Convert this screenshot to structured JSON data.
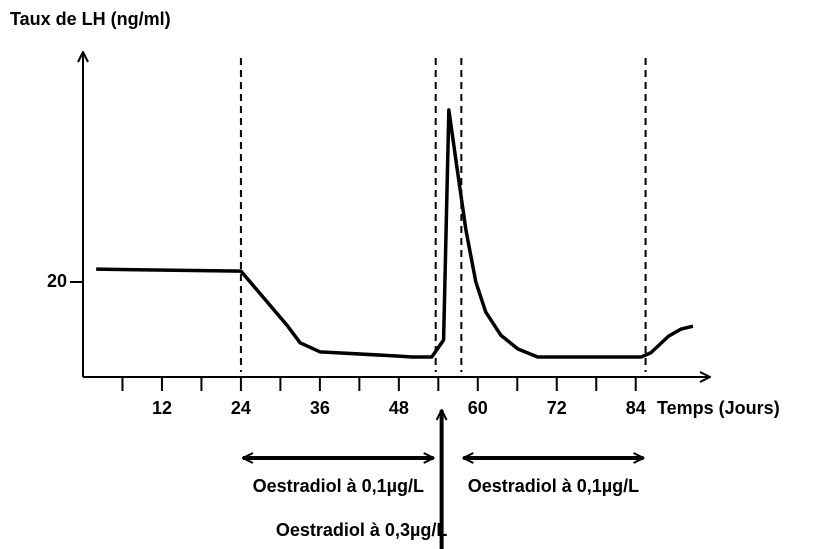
{
  "chart_data": {
    "type": "line",
    "y_label": "Taux de LH (ng/ml)",
    "x_label": "Temps (Jours)",
    "xlim": [
      0,
      95
    ],
    "ylim": [
      0,
      68
    ],
    "xticks": [
      12,
      24,
      36,
      48,
      60,
      72,
      84
    ],
    "xminor": [
      6,
      18,
      30,
      42,
      54,
      66,
      78
    ],
    "yticks": [
      20
    ],
    "series": [
      {
        "color": "#000000",
        "x": [
          2,
          24,
          31,
          33,
          36,
          48,
          50,
          53,
          54.8,
          55.6,
          57.1,
          58.2,
          59.7,
          61.2,
          63.5,
          66.1,
          69.1,
          84.8,
          86.3,
          89,
          90.9,
          92.7
        ],
        "values": [
          22.7,
          22.3,
          10.9,
          7.2,
          5.3,
          4.4,
          4.2,
          4.2,
          7.8,
          56.2,
          41.5,
          30.9,
          20,
          13.7,
          8.8,
          5.9,
          4.2,
          4.2,
          5.1,
          8.6,
          10.1,
          10.7
        ]
      }
    ],
    "vlines": [
      24,
      53.6,
      57.5,
      85.5
    ],
    "annotations": [
      {
        "text": "Oestradiol à 0,1µg/L",
        "x": [
          24,
          53.6
        ]
      },
      {
        "text": "Oestradiol à 0,1µg/L",
        "x": [
          57.5,
          85.5
        ]
      },
      {
        "text": "Oestradiol à 0,3µg/L",
        "x": [
          54.5
        ]
      }
    ]
  }
}
